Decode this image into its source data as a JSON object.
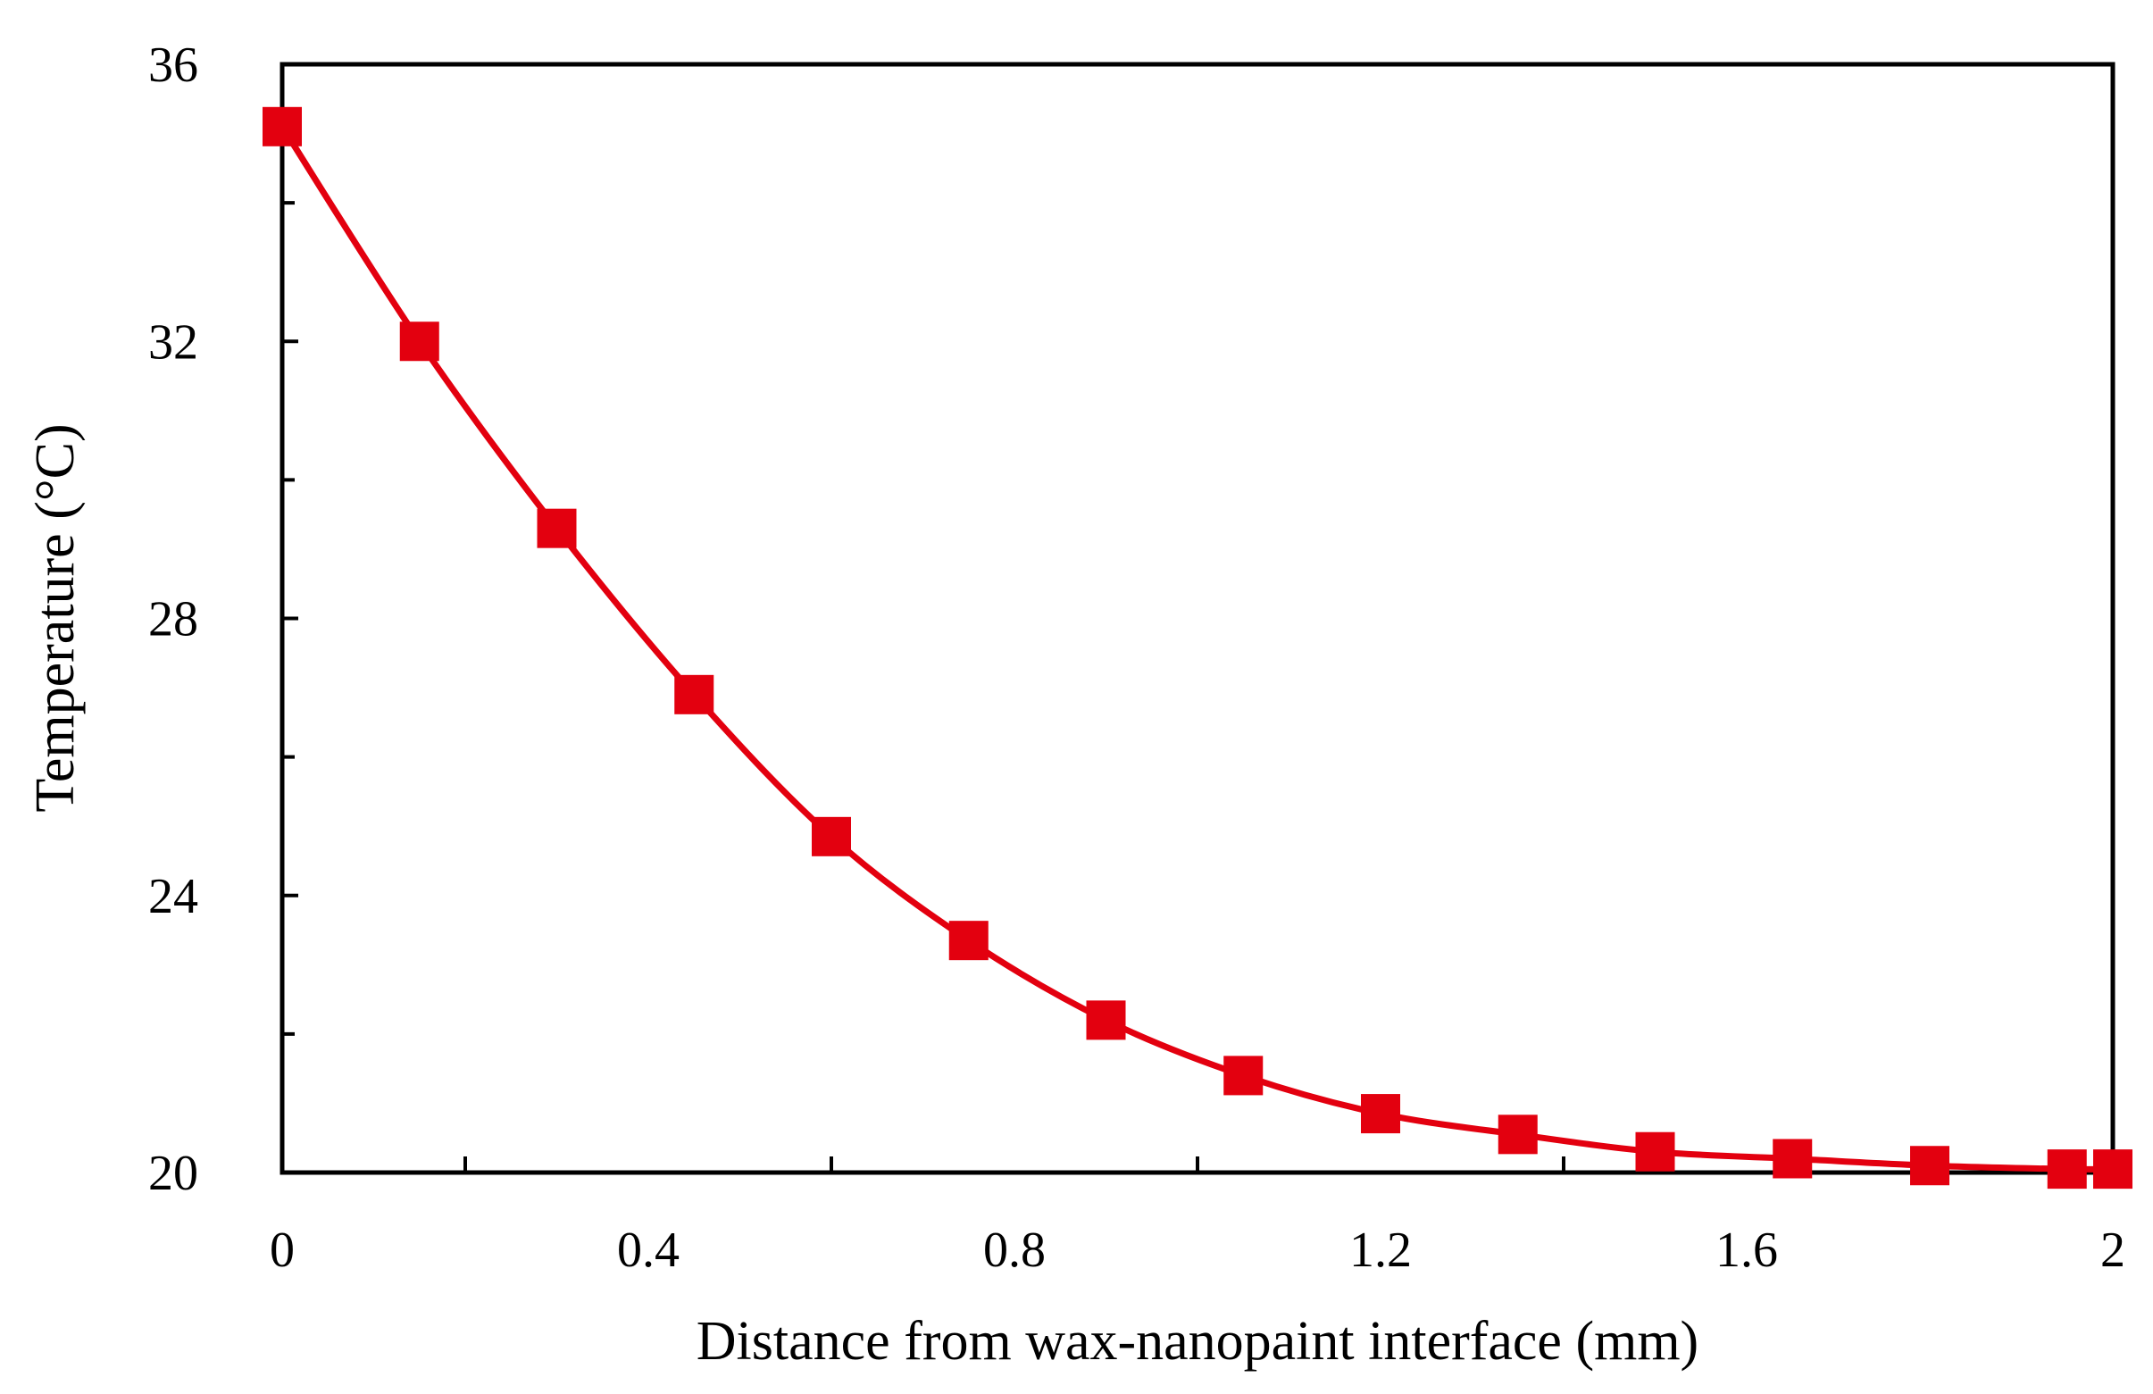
{
  "chart_data": {
    "type": "line",
    "title": "",
    "xlabel": "Distance from wax-nanopaint interface (mm)",
    "ylabel": "Temperature (°C)",
    "xlim": [
      0,
      2
    ],
    "ylim": [
      20,
      36
    ],
    "x_ticks": [
      0,
      0.4,
      0.8,
      1.2,
      1.6,
      2
    ],
    "x_tick_labels": [
      "0",
      "0.4",
      "0.8",
      "1.2",
      "1.6",
      "2"
    ],
    "x_minor_ticks": [
      0.2,
      0.6,
      1.0,
      1.4,
      1.8
    ],
    "y_ticks": [
      20,
      24,
      28,
      32,
      36
    ],
    "y_tick_labels": [
      "20",
      "24",
      "28",
      "32",
      "36"
    ],
    "y_minor_ticks": [
      22,
      26,
      30,
      34
    ],
    "grid": false,
    "legend": "none",
    "series": [
      {
        "name": "Temperature",
        "color": "#e3000f",
        "marker": "square",
        "x": [
          0,
          0.15,
          0.3,
          0.45,
          0.6,
          0.75,
          0.9,
          1.05,
          1.2,
          1.35,
          1.5,
          1.65,
          1.8,
          1.95,
          2.0
        ],
        "y": [
          35.1,
          32.0,
          29.3,
          26.9,
          24.85,
          23.35,
          22.2,
          21.4,
          20.85,
          20.55,
          20.3,
          20.2,
          20.1,
          20.05,
          20.05
        ]
      }
    ]
  }
}
